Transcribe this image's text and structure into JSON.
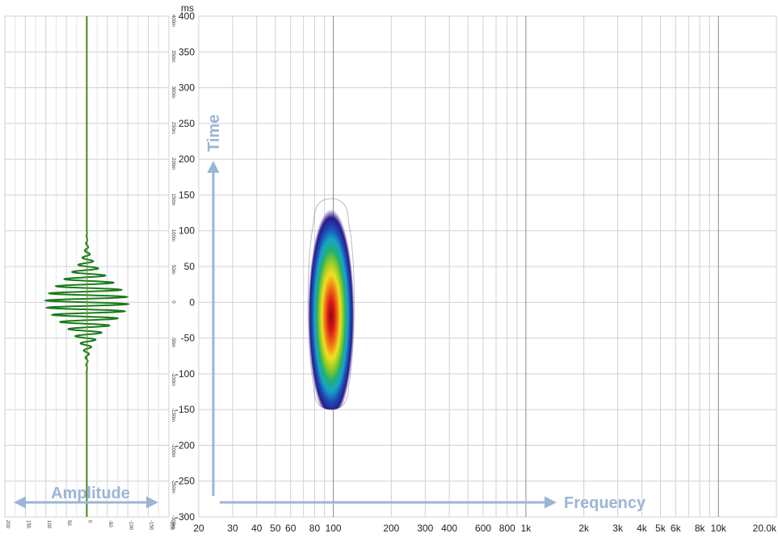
{
  "chart_data": [
    {
      "type": "line",
      "panel": "waveform",
      "x_axis_label": "Amplitude",
      "x_ticks": [
        "200",
        "150",
        "100",
        "50",
        "0",
        "-50",
        "-100",
        "-150",
        "-200"
      ],
      "y_ticks_ms": [
        "400m",
        "350m",
        "300m",
        "250m",
        "200m",
        "150m",
        "100m",
        "50m",
        "0",
        "-50m",
        "-100m",
        "-150m",
        "-200m",
        "-250m",
        "-300m"
      ],
      "y_range_ms": [
        -300,
        400
      ],
      "x_range": [
        200,
        -200
      ],
      "series": [
        {
          "description_of_shape": "sine burst centred at 0 ms",
          "frequency_hz": 100,
          "peak_amplitude": 100,
          "time_extent_ms": [
            -100,
            100
          ],
          "color": "#1a7a1a"
        }
      ],
      "grid": true
    },
    {
      "type": "heatmap",
      "panel": "spectrogram",
      "x_axis_label": "Frequency",
      "y_axis_label": "Time",
      "y_unit": "ms",
      "x_scale": "log",
      "x_range_hz": [
        20,
        20000
      ],
      "y_range_ms": [
        -300,
        400
      ],
      "x_ticks": [
        {
          "v": 20,
          "label": "20"
        },
        {
          "v": 30,
          "label": "30"
        },
        {
          "v": 40,
          "label": "40"
        },
        {
          "v": 50,
          "label": "50"
        },
        {
          "v": 60,
          "label": "60"
        },
        {
          "v": 80,
          "label": "80"
        },
        {
          "v": 100,
          "label": "100"
        },
        {
          "v": 200,
          "label": "200"
        },
        {
          "v": 300,
          "label": "300"
        },
        {
          "v": 400,
          "label": "400"
        },
        {
          "v": 600,
          "label": "600"
        },
        {
          "v": 800,
          "label": "800"
        },
        {
          "v": 1000,
          "label": "1k"
        },
        {
          "v": 2000,
          "label": "2k"
        },
        {
          "v": 3000,
          "label": "3k"
        },
        {
          "v": 4000,
          "label": "4k"
        },
        {
          "v": 5000,
          "label": "5k"
        },
        {
          "v": 6000,
          "label": "6k"
        },
        {
          "v": 8000,
          "label": "8k"
        },
        {
          "v": 10000,
          "label": "10k"
        },
        {
          "v": 20000,
          "label": "20.0k"
        }
      ],
      "y_ticks": [
        "400",
        "350",
        "300",
        "250",
        "200",
        "150",
        "100",
        "50",
        "0",
        "-50",
        "-100",
        "-150",
        "-200",
        "-250",
        "-300"
      ],
      "blob": {
        "center_hz": 100,
        "freq_span_hz": [
          73,
          130
        ],
        "time_span_ms": [
          -150,
          145
        ],
        "peak_time_ms": -10,
        "colormap": [
          "#ffffff",
          "#2b1a8a",
          "#1c49b8",
          "#1aa0c8",
          "#20b070",
          "#7ac020",
          "#f0e020",
          "#f08020",
          "#e02020",
          "#8a0a0a"
        ]
      },
      "grid": true
    }
  ]
}
